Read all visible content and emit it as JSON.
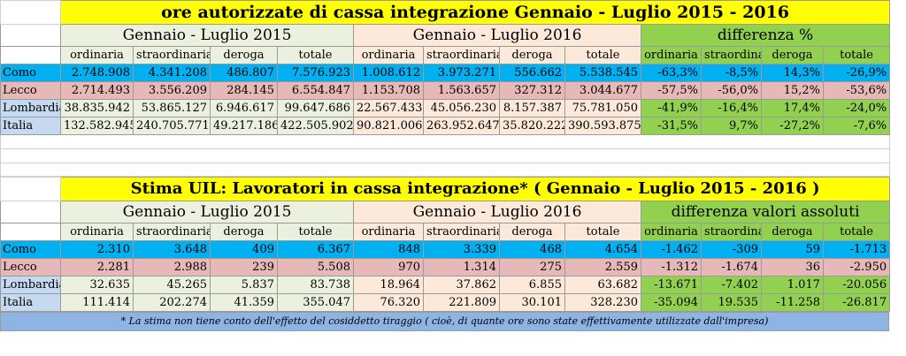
{
  "table1": {
    "title": "ore autorizzate di cassa integrazione Gennaio - Luglio  2015 - 2016",
    "groups": [
      "Gennaio - Luglio 2015",
      "Gennaio - Luglio  2016",
      "differenza %"
    ],
    "subheaders": [
      "ordinaria",
      "straordinaria",
      "deroga",
      "totale",
      "ordinaria",
      "straordinaria",
      "deroga",
      "totale",
      "ordinaria",
      "straordinari",
      "deroga",
      "totale"
    ],
    "rows": [
      {
        "label": "Como",
        "cells": [
          "2.748.908",
          "4.341.208",
          "486.807",
          "7.576.923",
          "1.008.612",
          "3.973.271",
          "556.662",
          "5.538.545",
          "-63,3%",
          "-8,5%",
          "14,3%",
          "-26,9%"
        ]
      },
      {
        "label": "Lecco",
        "cells": [
          "2.714.493",
          "3.556.209",
          "284.145",
          "6.554.847",
          "1.153.708",
          "1.563.657",
          "327.312",
          "3.044.677",
          "-57,5%",
          "-56,0%",
          "15,2%",
          "-53,6%"
        ]
      },
      {
        "label": "Lombardia",
        "cells": [
          "38.835.942",
          "53.865.127",
          "6.946.617",
          "99.647.686",
          "22.567.433",
          "45.056.230",
          "8.157.387",
          "75.781.050",
          "-41,9%",
          "-16,4%",
          "17,4%",
          "-24,0%"
        ]
      },
      {
        "label": "Italia",
        "cells": [
          "132.582.945",
          "240.705.771",
          "49.217.186",
          "422.505.902",
          "90.821.006",
          "263.952.647",
          "35.820.222",
          "390.593.875",
          "-31,5%",
          "9,7%",
          "-27,2%",
          "-7,6%"
        ]
      }
    ]
  },
  "table2": {
    "title": "Stima UIL: Lavoratori in cassa integrazione* ( Gennaio - Luglio 2015 - 2016 )",
    "groups": [
      "Gennaio - Luglio 2015",
      "Gennaio - Luglio  2016",
      "differenza valori assoluti"
    ],
    "subheaders": [
      "ordinaria",
      "straordinaria",
      "deroga",
      "totale",
      "ordinaria",
      "straordinaria",
      "deroga",
      "totale",
      "ordinaria",
      "straordinari",
      "deroga",
      "totale"
    ],
    "rows": [
      {
        "label": "Como",
        "cells": [
          "2.310",
          "3.648",
          "409",
          "6.367",
          "848",
          "3.339",
          "468",
          "4.654",
          "-1.462",
          "-309",
          "59",
          "-1.713"
        ]
      },
      {
        "label": "Lecco",
        "cells": [
          "2.281",
          "2.988",
          "239",
          "5.508",
          "970",
          "1.314",
          "275",
          "2.559",
          "-1.312",
          "-1.674",
          "36",
          "-2.950"
        ]
      },
      {
        "label": "Lombardia",
        "cells": [
          "32.635",
          "45.265",
          "5.837",
          "83.738",
          "18.964",
          "37.862",
          "6.855",
          "63.682",
          "-13.671",
          "-7.402",
          "1.017",
          "-20.056"
        ]
      },
      {
        "label": "Italia",
        "cells": [
          "111.414",
          "202.274",
          "41.359",
          "355.047",
          "76.320",
          "221.809",
          "30.101",
          "328.230",
          "-35.094",
          "19.535",
          "-11.258",
          "-26.817"
        ]
      }
    ],
    "note": "* La stima non tiene conto dell'effetto del cosiddetto tiraggio ( cioè, di quante ore sono state effettivamente utilizzate dall'impresa)"
  }
}
